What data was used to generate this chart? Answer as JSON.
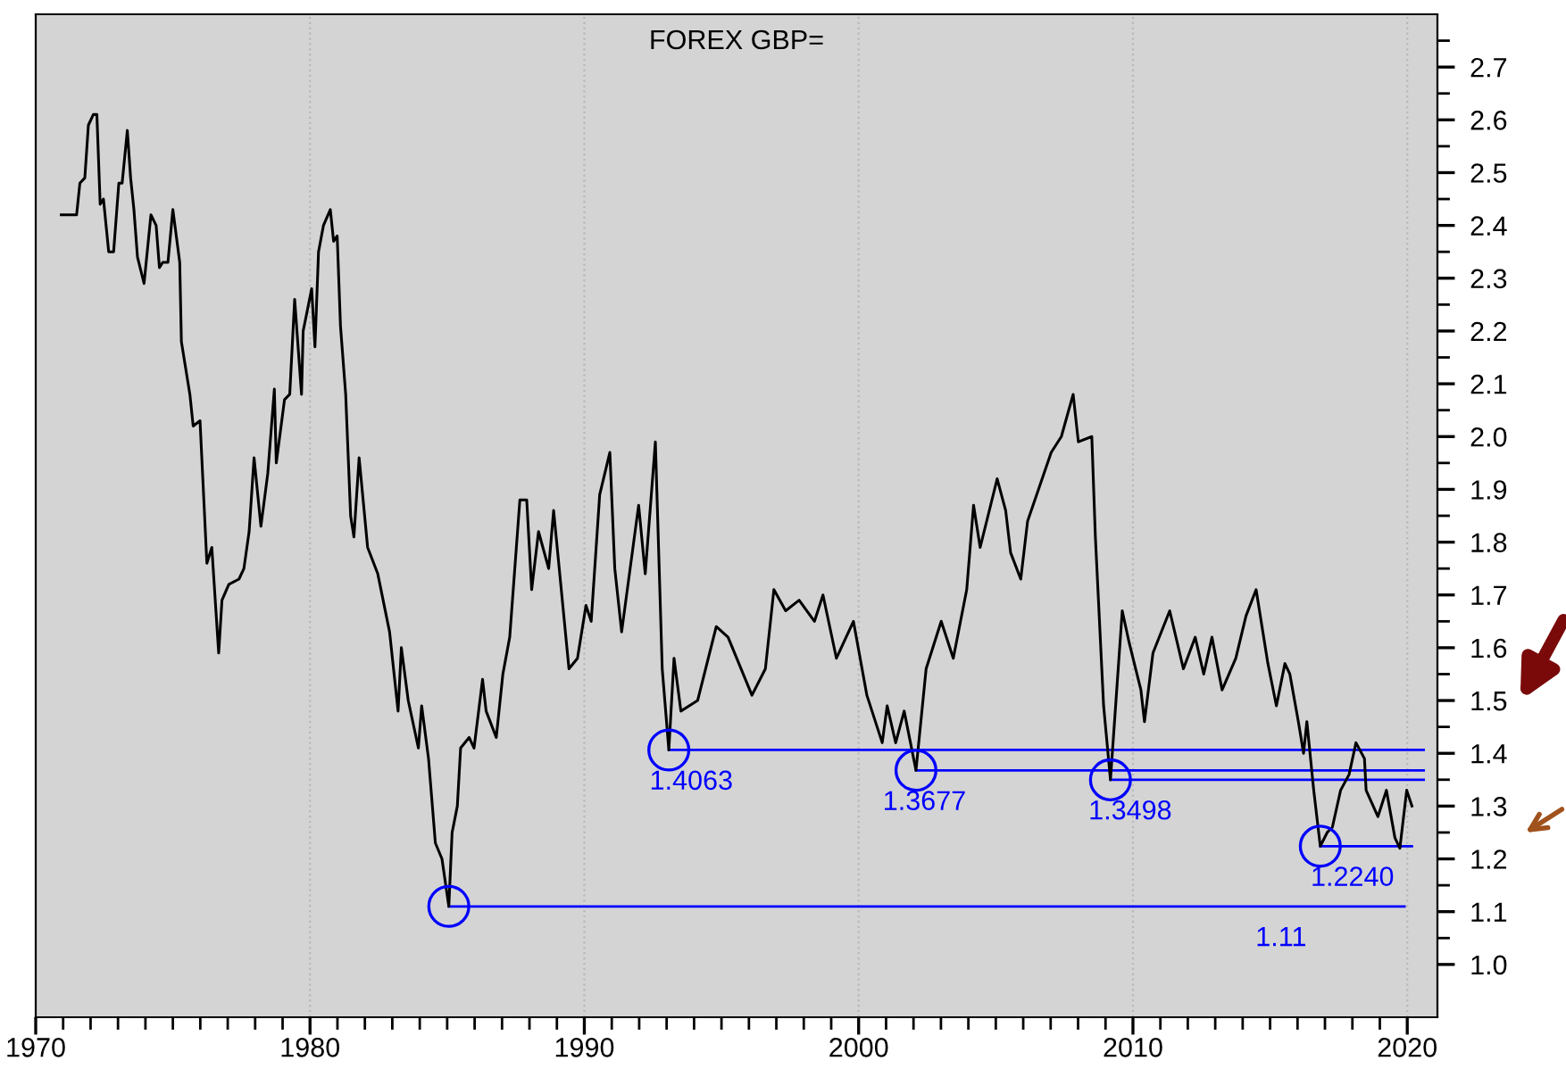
{
  "chart_data": {
    "type": "line",
    "title": "FOREX GBP=",
    "xlim": [
      1970,
      2021.1
    ],
    "ylim": [
      0.9,
      2.8
    ],
    "xticks": [
      1970,
      {
        "value": 1971,
        "label": null
      },
      {
        "value": 1972,
        "label": null
      },
      {
        "value": 1973,
        "label": null
      },
      {
        "value": 1974,
        "label": null
      },
      {
        "value": 1975,
        "label": null
      },
      {
        "value": 1976,
        "label": null
      },
      {
        "value": 1977,
        "label": null
      },
      {
        "value": 1978,
        "label": null
      },
      {
        "value": 1979,
        "label": null
      },
      1980,
      {
        "value": 1981,
        "label": null
      },
      {
        "value": 1982,
        "label": null
      },
      {
        "value": 1983,
        "label": null
      },
      {
        "value": 1984,
        "label": null
      },
      {
        "value": 1985,
        "label": null
      },
      {
        "value": 1986,
        "label": null
      },
      {
        "value": 1987,
        "label": null
      },
      {
        "value": 1988,
        "label": null
      },
      {
        "value": 1989,
        "label": null
      },
      1990,
      {
        "value": 1991,
        "label": null
      },
      {
        "value": 1992,
        "label": null
      },
      {
        "value": 1993,
        "label": null
      },
      {
        "value": 1994,
        "label": null
      },
      {
        "value": 1995,
        "label": null
      },
      {
        "value": 1996,
        "label": null
      },
      {
        "value": 1997,
        "label": null
      },
      {
        "value": 1998,
        "label": null
      },
      {
        "value": 1999,
        "label": null
      },
      2000,
      {
        "value": 2001,
        "label": null
      },
      {
        "value": 2002,
        "label": null
      },
      {
        "value": 2003,
        "label": null
      },
      {
        "value": 2004,
        "label": null
      },
      {
        "value": 2005,
        "label": null
      },
      {
        "value": 2006,
        "label": null
      },
      {
        "value": 2007,
        "label": null
      },
      {
        "value": 2008,
        "label": null
      },
      {
        "value": 2009,
        "label": null
      },
      2010,
      {
        "value": 2011,
        "label": null
      },
      {
        "value": 2012,
        "label": null
      },
      {
        "value": 2013,
        "label": null
      },
      {
        "value": 2014,
        "label": null
      },
      {
        "value": 2015,
        "label": null
      },
      {
        "value": 2016,
        "label": null
      },
      {
        "value": 2017,
        "label": null
      },
      {
        "value": 2018,
        "label": null
      },
      {
        "value": 2019,
        "label": null
      },
      2020
    ],
    "yticks": [
      {
        "value": 1,
        "label": "1.0"
      },
      {
        "value": 1.05,
        "label": null
      },
      1.1,
      {
        "value": 1.15,
        "label": null
      },
      1.2,
      {
        "value": 1.25,
        "label": null
      },
      1.3,
      {
        "value": 1.35,
        "label": null
      },
      1.4,
      {
        "value": 1.45,
        "label": null
      },
      1.5,
      {
        "value": 1.55,
        "label": null
      },
      1.6,
      {
        "value": 1.65,
        "label": null
      },
      1.7,
      {
        "value": 1.75,
        "label": null
      },
      1.8,
      {
        "value": 1.85,
        "label": null
      },
      1.9,
      {
        "value": 1.95,
        "label": null
      },
      {
        "value": 2,
        "label": "2.0"
      },
      {
        "value": 2.05,
        "label": null
      },
      2.1,
      {
        "value": 2.15,
        "label": null
      },
      2.2,
      {
        "value": 2.25,
        "label": null
      },
      2.3,
      {
        "value": 2.35,
        "label": null
      },
      2.4,
      {
        "value": 2.45,
        "label": null
      },
      2.5,
      {
        "value": 2.55,
        "label": null
      },
      2.6,
      {
        "value": 2.65,
        "label": null
      },
      2.7,
      {
        "value": 2.75,
        "label": null
      }
    ],
    "grid": "x",
    "series": [
      {
        "color": "#000000",
        "x": [
          1970.93,
          1971.49,
          1971.61,
          1971.79,
          1971.92,
          1972.1,
          1972.23,
          1972.35,
          1972.47,
          1972.66,
          1972.84,
          1973.03,
          1973.15,
          1973.34,
          1973.46,
          1973.58,
          1973.71,
          1973.95,
          1974.2,
          1974.39,
          1974.51,
          1974.63,
          1974.82,
          1975.0,
          1975.25,
          1975.31,
          1975.62,
          1975.74,
          1975.99,
          1976.24,
          1976.42,
          1976.67,
          1976.79,
          1977.04,
          1977.41,
          1977.59,
          1977.78,
          1977.96,
          1978.21,
          1978.46,
          1978.7,
          1978.77,
          1979.07,
          1979.26,
          1979.44,
          1979.69,
          1979.75,
          1980.06,
          1980.18,
          1980.31,
          1980.49,
          1980.74,
          1980.86,
          1980.99,
          1981.11,
          1981.3,
          1981.48,
          1981.6,
          1981.79,
          1982.1,
          1982.47,
          1982.9,
          1983.21,
          1983.33,
          1983.58,
          1983.95,
          1984.07,
          1984.32,
          1984.57,
          1984.81,
          1985.06,
          1985.18,
          1985.37,
          1985.49,
          1985.8,
          1985.98,
          1986.29,
          1986.42,
          1986.79,
          1987.03,
          1987.28,
          1987.65,
          1987.9,
          1988.08,
          1988.33,
          1988.7,
          1988.88,
          1989.44,
          1989.75,
          1990.06,
          1990.25,
          1990.56,
          1990.93,
          1991.11,
          1991.36,
          1991.98,
          1992.22,
          1992.59,
          1992.84,
          1993.08,
          1993.27,
          1993.52,
          1994.13,
          1994.81,
          1995.24,
          1996.11,
          1996.6,
          1996.91,
          1997.34,
          1997.83,
          1998.39,
          1998.7,
          1999.19,
          1999.81,
          2000.3,
          2000.86,
          2001.04,
          2001.35,
          2001.66,
          2002.09,
          2002.46,
          2003.01,
          2003.45,
          2003.94,
          2004.19,
          2004.43,
          2005.05,
          2005.36,
          2005.54,
          2005.91,
          2006.16,
          2007.02,
          2007.39,
          2007.82,
          2008.01,
          2008.5,
          2008.63,
          2008.93,
          2009.18,
          2009.61,
          2009.86,
          2010.29,
          2010.42,
          2010.73,
          2011.34,
          2011.84,
          2012.27,
          2012.58,
          2012.88,
          2013.25,
          2013.75,
          2014.12,
          2014.49,
          2014.92,
          2015.23,
          2015.54,
          2015.72,
          2016.03,
          2016.22,
          2016.34,
          2016.59,
          2016.83,
          2017.08,
          2017.27,
          2017.57,
          2017.88,
          2018.13,
          2018.44,
          2018.5,
          2018.93,
          2019.24,
          2019.55,
          2019.73,
          2019.98,
          2020.17
        ],
        "values": [
          2.42,
          2.42,
          2.48,
          2.49,
          2.59,
          2.61,
          2.61,
          2.44,
          2.45,
          2.35,
          2.35,
          2.48,
          2.48,
          2.58,
          2.49,
          2.43,
          2.34,
          2.29,
          2.42,
          2.4,
          2.32,
          2.33,
          2.33,
          2.43,
          2.33,
          2.18,
          2.08,
          2.02,
          2.03,
          1.76,
          1.79,
          1.59,
          1.69,
          1.72,
          1.73,
          1.75,
          1.82,
          1.96,
          1.83,
          1.93,
          2.09,
          1.95,
          2.07,
          2.08,
          2.26,
          2.08,
          2.2,
          2.28,
          2.17,
          2.35,
          2.4,
          2.43,
          2.37,
          2.38,
          2.21,
          2.08,
          1.85,
          1.81,
          1.96,
          1.79,
          1.74,
          1.63,
          1.48,
          1.6,
          1.5,
          1.41,
          1.49,
          1.39,
          1.23,
          1.2,
          1.11,
          1.25,
          1.3,
          1.41,
          1.43,
          1.41,
          1.54,
          1.48,
          1.43,
          1.55,
          1.62,
          1.88,
          1.88,
          1.71,
          1.82,
          1.75,
          1.86,
          1.56,
          1.58,
          1.68,
          1.65,
          1.89,
          1.97,
          1.75,
          1.63,
          1.87,
          1.74,
          1.99,
          1.56,
          1.4063,
          1.58,
          1.48,
          1.5,
          1.64,
          1.62,
          1.51,
          1.56,
          1.71,
          1.67,
          1.69,
          1.65,
          1.7,
          1.58,
          1.65,
          1.51,
          1.42,
          1.49,
          1.42,
          1.48,
          1.3677,
          1.56,
          1.65,
          1.58,
          1.71,
          1.87,
          1.79,
          1.92,
          1.86,
          1.78,
          1.73,
          1.84,
          1.97,
          2.0,
          2.08,
          1.99,
          2.0,
          1.81,
          1.49,
          1.3498,
          1.67,
          1.61,
          1.52,
          1.46,
          1.59,
          1.67,
          1.56,
          1.62,
          1.55,
          1.62,
          1.52,
          1.58,
          1.66,
          1.71,
          1.57,
          1.49,
          1.57,
          1.55,
          1.46,
          1.4,
          1.46,
          1.33,
          1.224,
          1.25,
          1.26,
          1.33,
          1.36,
          1.42,
          1.39,
          1.33,
          1.28,
          1.33,
          1.24,
          1.22,
          1.33,
          1.3
        ]
      },
      {
        "type": "line",
        "color": "#0000ff",
        "x": [
          1993.08,
          2020.6
        ],
        "values": [
          1.4063,
          1.4063
        ]
      },
      {
        "type": "line",
        "color": "#0000ff",
        "x": [
          2002.09,
          2020.6
        ],
        "values": [
          1.3677,
          1.3677
        ]
      },
      {
        "type": "line",
        "color": "#0000ff",
        "x": [
          2009.18,
          2020.6
        ],
        "values": [
          1.3498,
          1.3498
        ]
      },
      {
        "type": "line",
        "color": "#0000ff",
        "x": [
          2016.83,
          2020.17
        ],
        "values": [
          1.224,
          1.224
        ]
      },
      {
        "type": "line",
        "color": "#0000ff",
        "x": [
          1985.06,
          2019.9
        ],
        "values": [
          1.11,
          1.11
        ]
      },
      {
        "type": "scatter",
        "color": "#0000ff",
        "marker": "circle",
        "x": [
          1993.08,
          2002.09,
          2009.18,
          2016.83,
          1985.06
        ],
        "values": [
          1.4063,
          1.3677,
          1.3498,
          1.224,
          1.11
        ]
      }
    ],
    "annotations": [
      {
        "text": "1.4063",
        "x": 1993.9,
        "y": 1.4063
      },
      {
        "text": "1.3677",
        "x": 2002.4,
        "y": 1.3677
      },
      {
        "text": "1.3498",
        "x": 2009.9,
        "y": 1.3498
      },
      {
        "text": "1.2240",
        "x": 2018.0,
        "y": 1.224
      },
      {
        "text": "1.11",
        "x": 2015.4,
        "y": 1.11
      }
    ]
  }
}
